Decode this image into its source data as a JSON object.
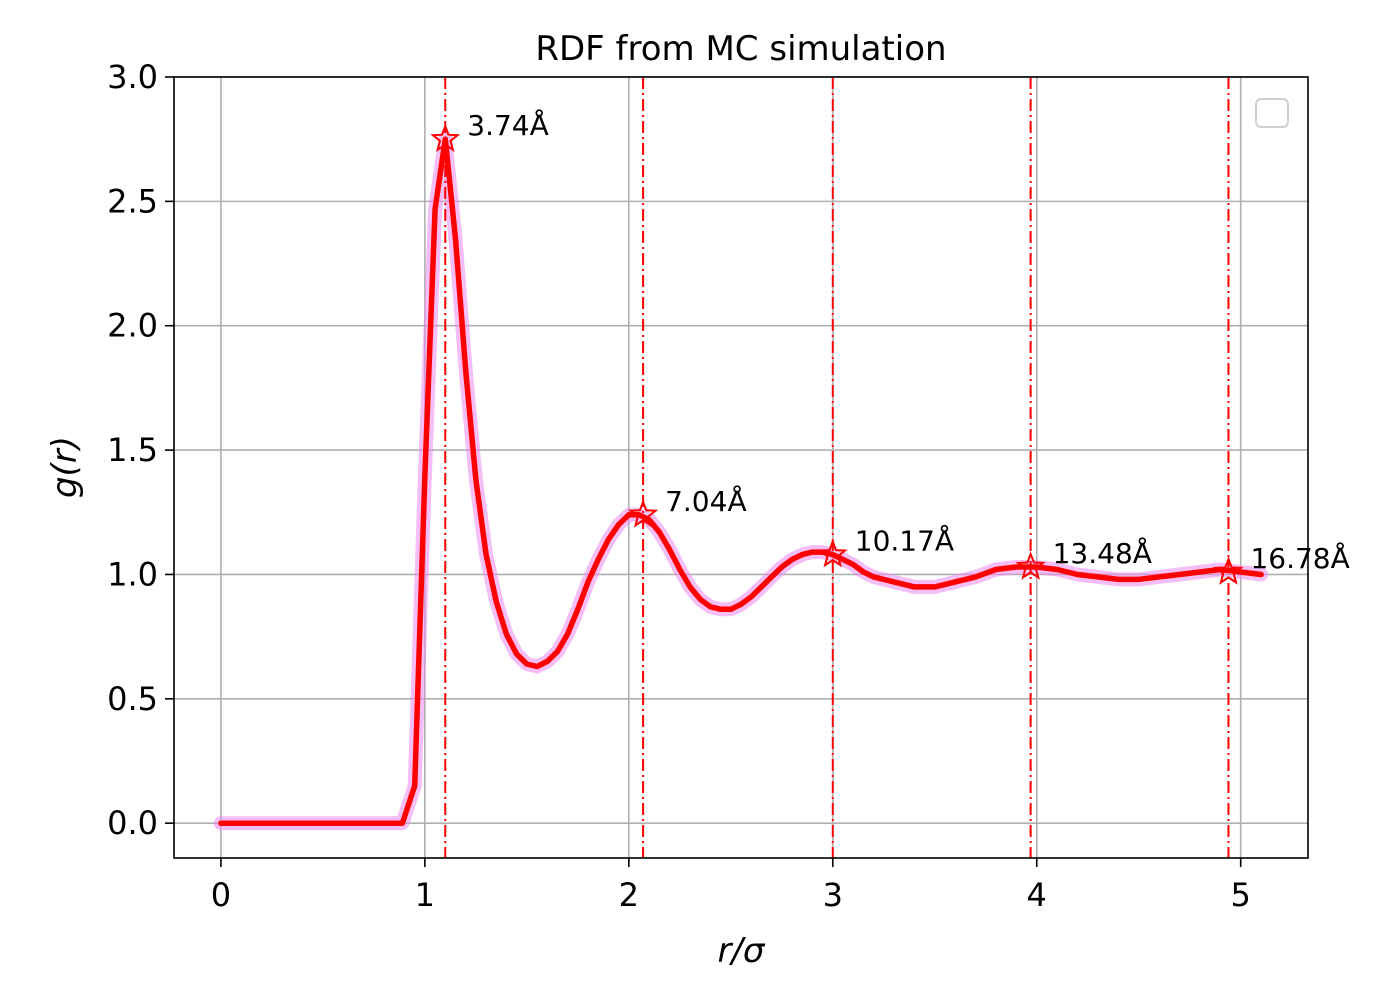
{
  "chart_data": {
    "type": "line",
    "title": "RDF from MC simulation",
    "xlabel": "r/σ",
    "ylabel": "g(r)",
    "xlim": [
      -0.23,
      5.33
    ],
    "ylim": [
      -0.14,
      3.0
    ],
    "xticks": [
      "0",
      "1",
      "2",
      "3",
      "4",
      "5"
    ],
    "yticks": [
      "0.0",
      "0.5",
      "1.0",
      "1.5",
      "2.0",
      "2.5",
      "3.0"
    ],
    "grid": true,
    "legend": "top-right",
    "line_color": "#ff0000",
    "band_color": "#ee88ee",
    "series": [
      {
        "x": [
          0.0,
          0.1,
          0.2,
          0.3,
          0.4,
          0.5,
          0.6,
          0.7,
          0.8,
          0.89,
          0.95,
          1.0,
          1.05,
          1.1,
          1.15,
          1.2,
          1.25,
          1.3,
          1.35,
          1.4,
          1.45,
          1.5,
          1.55,
          1.6,
          1.65,
          1.7,
          1.75,
          1.8,
          1.85,
          1.9,
          1.95,
          2.0,
          2.05,
          2.1,
          2.15,
          2.2,
          2.25,
          2.3,
          2.35,
          2.4,
          2.45,
          2.5,
          2.55,
          2.6,
          2.65,
          2.7,
          2.75,
          2.8,
          2.85,
          2.9,
          2.95,
          3.0,
          3.05,
          3.1,
          3.15,
          3.2,
          3.3,
          3.4,
          3.5,
          3.6,
          3.7,
          3.8,
          3.9,
          4.0,
          4.1,
          4.2,
          4.3,
          4.4,
          4.5,
          4.6,
          4.7,
          4.8,
          4.9,
          5.0,
          5.1
        ],
        "y": [
          0.0,
          0.0,
          0.0,
          0.0,
          0.0,
          0.0,
          0.0,
          0.0,
          0.0,
          0.0,
          0.15,
          1.4,
          2.47,
          2.75,
          2.35,
          1.82,
          1.38,
          1.08,
          0.89,
          0.76,
          0.68,
          0.64,
          0.63,
          0.65,
          0.69,
          0.76,
          0.86,
          0.97,
          1.06,
          1.14,
          1.2,
          1.24,
          1.24,
          1.22,
          1.17,
          1.1,
          1.02,
          0.95,
          0.9,
          0.87,
          0.86,
          0.86,
          0.88,
          0.91,
          0.95,
          0.99,
          1.03,
          1.06,
          1.08,
          1.09,
          1.09,
          1.08,
          1.06,
          1.04,
          1.01,
          0.99,
          0.97,
          0.95,
          0.95,
          0.97,
          0.99,
          1.02,
          1.03,
          1.03,
          1.02,
          1.0,
          0.99,
          0.98,
          0.98,
          0.99,
          1.0,
          1.01,
          1.02,
          1.01,
          1.0
        ]
      }
    ],
    "peaks": [
      {
        "x": 1.1,
        "y": 2.75,
        "label": "3.74Å"
      },
      {
        "x": 2.07,
        "y": 1.24,
        "label": "7.04Å"
      },
      {
        "x": 3.0,
        "y": 1.08,
        "label": "10.17Å"
      },
      {
        "x": 3.97,
        "y": 1.03,
        "label": "13.48Å"
      },
      {
        "x": 4.94,
        "y": 1.01,
        "label": "16.78Å"
      }
    ]
  }
}
